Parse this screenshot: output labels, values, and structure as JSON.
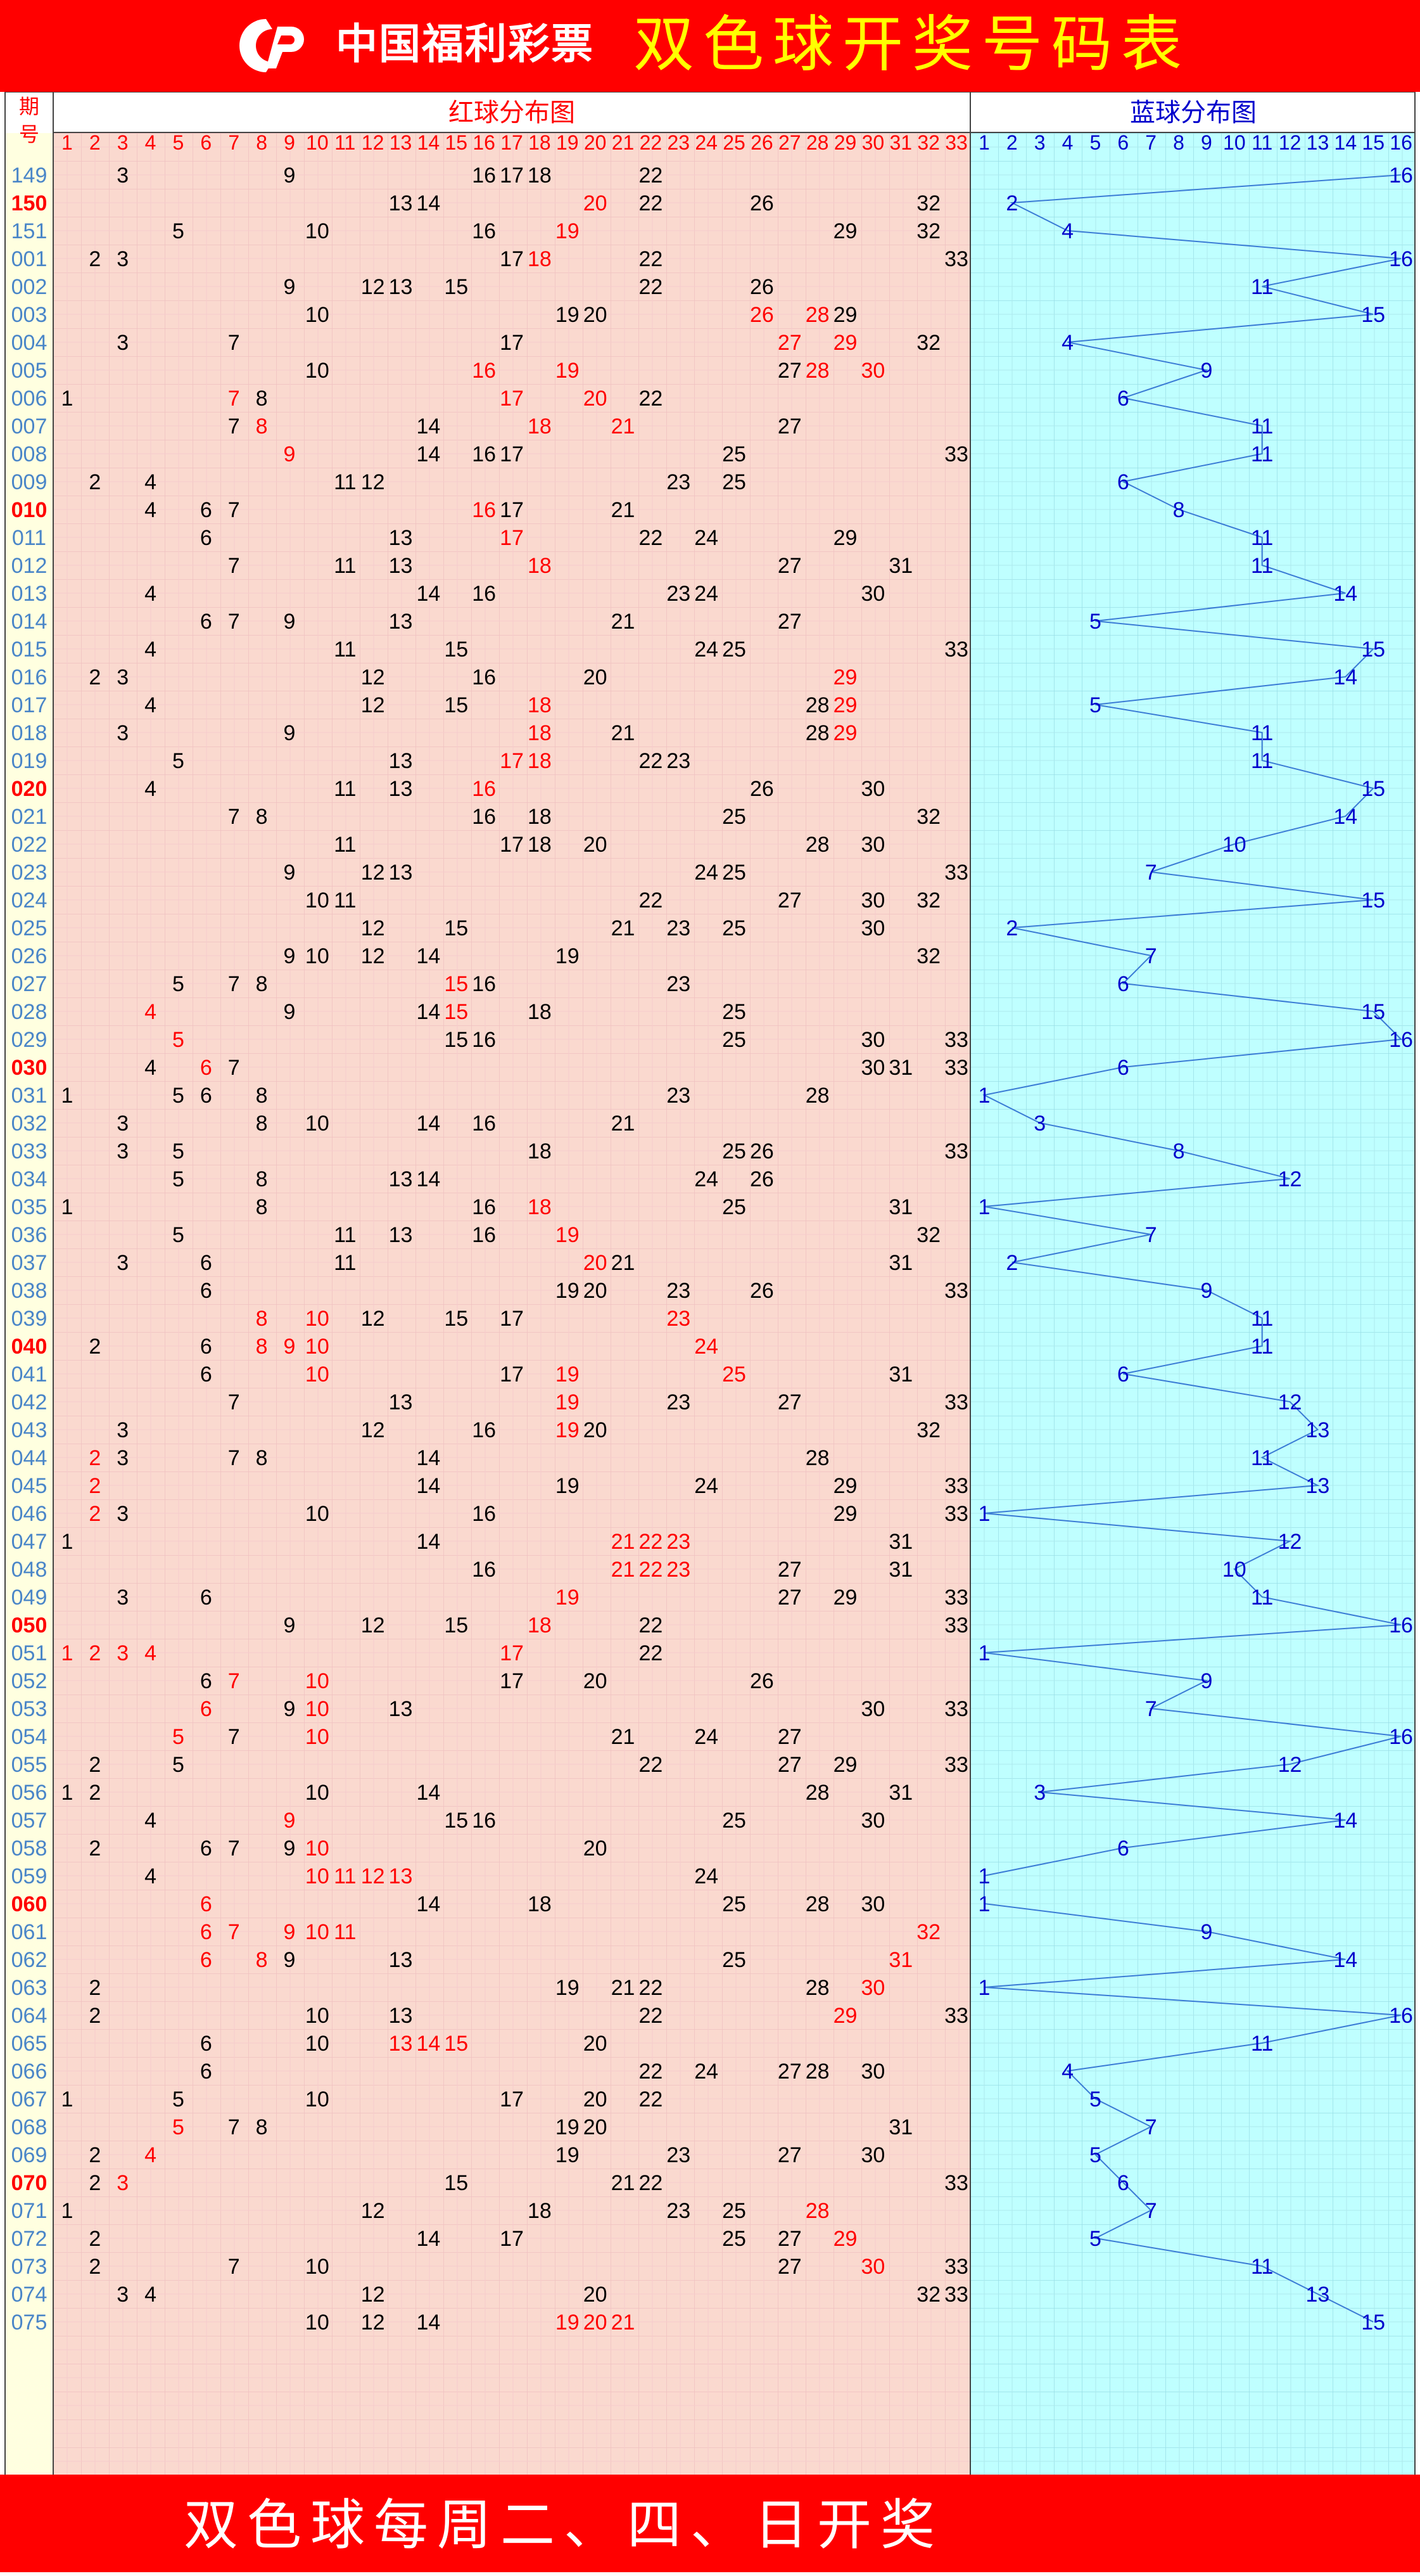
{
  "header": {
    "brand": "中国福利彩票",
    "title": "双色球开奖号码表"
  },
  "table": {
    "period_header": [
      "期",
      "号"
    ],
    "red_section_title": "红球分布图",
    "blue_section_title": "蓝球分布图",
    "red_numbers": [
      "1",
      "2",
      "3",
      "4",
      "5",
      "6",
      "7",
      "8",
      "9",
      "10",
      "11",
      "12",
      "13",
      "14",
      "15",
      "16",
      "17",
      "18",
      "19",
      "20",
      "21",
      "22",
      "23",
      "24",
      "25",
      "26",
      "27",
      "28",
      "29",
      "30",
      "31",
      "32",
      "33"
    ],
    "blue_numbers": [
      "1",
      "2",
      "3",
      "4",
      "5",
      "6",
      "7",
      "8",
      "9",
      "10",
      "11",
      "12",
      "13",
      "14",
      "15",
      "16"
    ],
    "colors": {
      "header_bg": "#ff0000",
      "title_yellow": "#ffff00",
      "red_zone_bg": "#fad9cf",
      "blue_zone_bg": "#bfffff",
      "period_bg": "#ffffe0",
      "period_text": "#4a86c8",
      "period_highlight": "#ff0000",
      "red_ball_text": "#000000",
      "red_ball_repeat": "#ff0000",
      "blue_ball_text": "#0000cc",
      "blue_line": "#3a7bd5"
    }
  },
  "draws": [
    {
      "period": "149",
      "red": [
        3,
        9,
        16,
        17,
        18,
        22
      ],
      "repeat": [],
      "blue": 16
    },
    {
      "period": "150",
      "red": [
        13,
        14,
        20,
        22,
        26,
        32
      ],
      "repeat": [
        20
      ],
      "blue": 2
    },
    {
      "period": "151",
      "red": [
        5,
        10,
        16,
        19,
        29,
        32
      ],
      "repeat": [
        19
      ],
      "blue": 4
    },
    {
      "period": "001",
      "red": [
        2,
        3,
        17,
        18,
        22,
        33
      ],
      "repeat": [
        18
      ],
      "blue": 16
    },
    {
      "period": "002",
      "red": [
        9,
        12,
        13,
        15,
        22,
        26
      ],
      "repeat": [],
      "blue": 11
    },
    {
      "period": "003",
      "red": [
        10,
        19,
        20,
        26,
        28,
        29
      ],
      "repeat": [
        26,
        28
      ],
      "blue": 15
    },
    {
      "period": "004",
      "red": [
        3,
        7,
        17,
        27,
        29,
        32
      ],
      "repeat": [
        27,
        29
      ],
      "blue": 4
    },
    {
      "period": "005",
      "red": [
        10,
        16,
        19,
        27,
        28,
        30
      ],
      "repeat": [
        16,
        19,
        28,
        30
      ],
      "blue": 9
    },
    {
      "period": "006",
      "red": [
        1,
        7,
        8,
        17,
        20,
        22
      ],
      "repeat": [
        7,
        17,
        20
      ],
      "blue": 6
    },
    {
      "period": "007",
      "red": [
        7,
        8,
        14,
        18,
        21,
        27
      ],
      "repeat": [
        8,
        18,
        21
      ],
      "blue": 11
    },
    {
      "period": "008",
      "red": [
        9,
        14,
        16,
        17,
        25,
        33
      ],
      "repeat": [
        9
      ],
      "blue": 11
    },
    {
      "period": "009",
      "red": [
        2,
        4,
        11,
        12,
        23,
        25
      ],
      "repeat": [],
      "blue": 6
    },
    {
      "period": "010",
      "red": [
        4,
        6,
        7,
        16,
        17,
        21
      ],
      "repeat": [
        16
      ],
      "blue": 8
    },
    {
      "period": "011",
      "red": [
        6,
        13,
        17,
        22,
        24,
        29
      ],
      "repeat": [
        17
      ],
      "blue": 11
    },
    {
      "period": "012",
      "red": [
        7,
        11,
        13,
        18,
        27,
        31
      ],
      "repeat": [
        18
      ],
      "blue": 11
    },
    {
      "period": "013",
      "red": [
        4,
        14,
        16,
        23,
        24,
        30
      ],
      "repeat": [],
      "blue": 14
    },
    {
      "period": "014",
      "red": [
        6,
        7,
        9,
        13,
        21,
        27
      ],
      "repeat": [],
      "blue": 5
    },
    {
      "period": "015",
      "red": [
        4,
        11,
        15,
        24,
        25,
        33
      ],
      "repeat": [],
      "blue": 15
    },
    {
      "period": "016",
      "red": [
        2,
        3,
        12,
        16,
        20,
        29
      ],
      "repeat": [
        29
      ],
      "blue": 14
    },
    {
      "period": "017",
      "red": [
        4,
        12,
        15,
        18,
        28,
        29
      ],
      "repeat": [
        18,
        29
      ],
      "blue": 5
    },
    {
      "period": "018",
      "red": [
        3,
        9,
        18,
        21,
        28,
        29
      ],
      "repeat": [
        18,
        29
      ],
      "blue": 11
    },
    {
      "period": "019",
      "red": [
        5,
        13,
        17,
        18,
        22,
        23
      ],
      "repeat": [
        17,
        18
      ],
      "blue": 11
    },
    {
      "period": "020",
      "red": [
        4,
        11,
        13,
        16,
        26,
        30
      ],
      "repeat": [
        16
      ],
      "blue": 15
    },
    {
      "period": "021",
      "red": [
        7,
        8,
        16,
        18,
        25,
        32
      ],
      "repeat": [],
      "blue": 14
    },
    {
      "period": "022",
      "red": [
        11,
        17,
        18,
        20,
        28,
        30
      ],
      "repeat": [],
      "blue": 10
    },
    {
      "period": "023",
      "red": [
        9,
        12,
        13,
        24,
        25,
        33
      ],
      "repeat": [],
      "blue": 7
    },
    {
      "period": "024",
      "red": [
        10,
        11,
        22,
        27,
        30,
        32
      ],
      "repeat": [],
      "blue": 15
    },
    {
      "period": "025",
      "red": [
        12,
        15,
        21,
        23,
        25,
        30
      ],
      "repeat": [],
      "blue": 2
    },
    {
      "period": "026",
      "red": [
        9,
        10,
        12,
        14,
        19,
        32
      ],
      "repeat": [],
      "blue": 7
    },
    {
      "period": "027",
      "red": [
        5,
        7,
        8,
        15,
        16,
        23
      ],
      "repeat": [
        15
      ],
      "blue": 6
    },
    {
      "period": "028",
      "red": [
        4,
        9,
        14,
        15,
        18,
        25
      ],
      "repeat": [
        4,
        15
      ],
      "blue": 15
    },
    {
      "period": "029",
      "red": [
        5,
        15,
        16,
        25,
        30,
        33
      ],
      "repeat": [
        5
      ],
      "blue": 16
    },
    {
      "period": "030",
      "red": [
        4,
        6,
        7,
        30,
        31,
        33
      ],
      "repeat": [
        6
      ],
      "blue": 6
    },
    {
      "period": "031",
      "red": [
        1,
        5,
        6,
        8,
        23,
        28
      ],
      "repeat": [],
      "blue": 1
    },
    {
      "period": "032",
      "red": [
        3,
        8,
        10,
        14,
        16,
        21
      ],
      "repeat": [],
      "blue": 3
    },
    {
      "period": "033",
      "red": [
        3,
        5,
        18,
        25,
        26,
        33
      ],
      "repeat": [],
      "blue": 8
    },
    {
      "period": "034",
      "red": [
        5,
        8,
        13,
        14,
        24,
        26
      ],
      "repeat": [],
      "blue": 12
    },
    {
      "period": "035",
      "red": [
        1,
        8,
        16,
        18,
        25,
        31
      ],
      "repeat": [
        18
      ],
      "blue": 1
    },
    {
      "period": "036",
      "red": [
        5,
        11,
        13,
        16,
        19,
        32
      ],
      "repeat": [
        19
      ],
      "blue": 7
    },
    {
      "period": "037",
      "red": [
        3,
        6,
        11,
        20,
        21,
        31
      ],
      "repeat": [
        20
      ],
      "blue": 2
    },
    {
      "period": "038",
      "red": [
        6,
        19,
        20,
        23,
        26,
        33
      ],
      "repeat": [],
      "blue": 9
    },
    {
      "period": "039",
      "red": [
        8,
        10,
        12,
        15,
        17,
        23
      ],
      "repeat": [
        8,
        10,
        23
      ],
      "blue": 11
    },
    {
      "period": "040",
      "red": [
        2,
        6,
        8,
        9,
        10,
        24
      ],
      "repeat": [
        8,
        9,
        10,
        24
      ],
      "blue": 11
    },
    {
      "period": "041",
      "red": [
        6,
        10,
        17,
        19,
        25,
        31
      ],
      "repeat": [
        10,
        19,
        25
      ],
      "blue": 6
    },
    {
      "period": "042",
      "red": [
        7,
        13,
        19,
        23,
        27,
        33
      ],
      "repeat": [
        19
      ],
      "blue": 12
    },
    {
      "period": "043",
      "red": [
        3,
        12,
        16,
        19,
        20,
        32
      ],
      "repeat": [
        19
      ],
      "blue": 13
    },
    {
      "period": "044",
      "red": [
        2,
        3,
        7,
        8,
        14,
        28
      ],
      "repeat": [
        2
      ],
      "blue": 11
    },
    {
      "period": "045",
      "red": [
        2,
        14,
        19,
        24,
        29,
        33
      ],
      "repeat": [
        2
      ],
      "blue": 13
    },
    {
      "period": "046",
      "red": [
        2,
        3,
        10,
        16,
        29,
        33
      ],
      "repeat": [
        2
      ],
      "blue": 1
    },
    {
      "period": "047",
      "red": [
        1,
        14,
        21,
        22,
        23,
        31
      ],
      "repeat": [
        21,
        22,
        23
      ],
      "blue": 12
    },
    {
      "period": "048",
      "red": [
        16,
        21,
        22,
        23,
        27,
        31
      ],
      "repeat": [
        21,
        22,
        23
      ],
      "blue": 10
    },
    {
      "period": "049",
      "red": [
        3,
        6,
        19,
        27,
        29,
        33
      ],
      "repeat": [
        19
      ],
      "blue": 11
    },
    {
      "period": "050",
      "red": [
        9,
        12,
        15,
        18,
        22,
        33
      ],
      "repeat": [
        18
      ],
      "blue": 16
    },
    {
      "period": "051",
      "red": [
        1,
        2,
        3,
        4,
        17,
        22
      ],
      "repeat": [
        1,
        2,
        3,
        4,
        17
      ],
      "blue": 1
    },
    {
      "period": "052",
      "red": [
        6,
        7,
        10,
        17,
        20,
        26
      ],
      "repeat": [
        7,
        10
      ],
      "blue": 9
    },
    {
      "period": "053",
      "red": [
        6,
        9,
        10,
        13,
        30,
        33
      ],
      "repeat": [
        6,
        10
      ],
      "blue": 7
    },
    {
      "period": "054",
      "red": [
        5,
        7,
        10,
        21,
        24,
        27
      ],
      "repeat": [
        5,
        10
      ],
      "blue": 16
    },
    {
      "period": "055",
      "red": [
        2,
        5,
        22,
        27,
        29,
        33
      ],
      "repeat": [],
      "blue": 12
    },
    {
      "period": "056",
      "red": [
        1,
        2,
        10,
        14,
        28,
        31
      ],
      "repeat": [],
      "blue": 3
    },
    {
      "period": "057",
      "red": [
        4,
        9,
        15,
        16,
        25,
        30
      ],
      "repeat": [
        9
      ],
      "blue": 14
    },
    {
      "period": "058",
      "red": [
        2,
        6,
        7,
        9,
        10,
        20
      ],
      "repeat": [
        10
      ],
      "blue": 6
    },
    {
      "period": "059",
      "red": [
        4,
        10,
        11,
        12,
        13,
        24
      ],
      "repeat": [
        10,
        11,
        12,
        13
      ],
      "blue": 1
    },
    {
      "period": "060",
      "red": [
        6,
        14,
        18,
        25,
        28,
        30
      ],
      "repeat": [
        6
      ],
      "blue": 1
    },
    {
      "period": "061",
      "red": [
        6,
        7,
        9,
        10,
        11,
        32
      ],
      "repeat": [
        6,
        7,
        9,
        10,
        11,
        32
      ],
      "blue": 9
    },
    {
      "period": "062",
      "red": [
        6,
        8,
        9,
        13,
        25,
        31
      ],
      "repeat": [
        6,
        8,
        31
      ],
      "blue": 14
    },
    {
      "period": "063",
      "red": [
        2,
        19,
        21,
        22,
        28,
        30
      ],
      "repeat": [
        30
      ],
      "blue": 1
    },
    {
      "period": "064",
      "red": [
        2,
        10,
        13,
        22,
        29,
        33
      ],
      "repeat": [
        29
      ],
      "blue": 16
    },
    {
      "period": "065",
      "red": [
        6,
        10,
        13,
        14,
        15,
        20
      ],
      "repeat": [
        13,
        14,
        15
      ],
      "blue": 11
    },
    {
      "period": "066",
      "red": [
        6,
        22,
        24,
        27,
        28,
        30
      ],
      "repeat": [],
      "blue": 4
    },
    {
      "period": "067",
      "red": [
        1,
        5,
        10,
        17,
        20,
        22
      ],
      "repeat": [],
      "blue": 5
    },
    {
      "period": "068",
      "red": [
        5,
        7,
        8,
        19,
        20,
        31
      ],
      "repeat": [
        5
      ],
      "blue": 7
    },
    {
      "period": "069",
      "red": [
        2,
        4,
        19,
        23,
        27,
        30
      ],
      "repeat": [
        4
      ],
      "blue": 5
    },
    {
      "period": "070",
      "red": [
        2,
        3,
        15,
        21,
        22,
        33
      ],
      "repeat": [
        3
      ],
      "blue": 6
    },
    {
      "period": "071",
      "red": [
        1,
        12,
        18,
        23,
        25,
        28
      ],
      "repeat": [
        28
      ],
      "blue": 7
    },
    {
      "period": "072",
      "red": [
        2,
        14,
        17,
        25,
        27,
        29
      ],
      "repeat": [
        29
      ],
      "blue": 5
    },
    {
      "period": "073",
      "red": [
        2,
        7,
        10,
        27,
        30,
        33
      ],
      "repeat": [
        30
      ],
      "blue": 11
    },
    {
      "period": "074",
      "red": [
        3,
        4,
        12,
        20,
        32,
        33
      ],
      "repeat": [],
      "blue": 13
    },
    {
      "period": "075",
      "red": [
        10,
        12,
        14,
        19,
        20,
        21
      ],
      "repeat": [
        19,
        20,
        21
      ],
      "blue": 15
    }
  ],
  "highlighted_periods": [
    "150",
    "010",
    "020",
    "030",
    "040",
    "050",
    "060",
    "070"
  ],
  "footer": {
    "text": "双色球每周二、四、日开奖"
  }
}
